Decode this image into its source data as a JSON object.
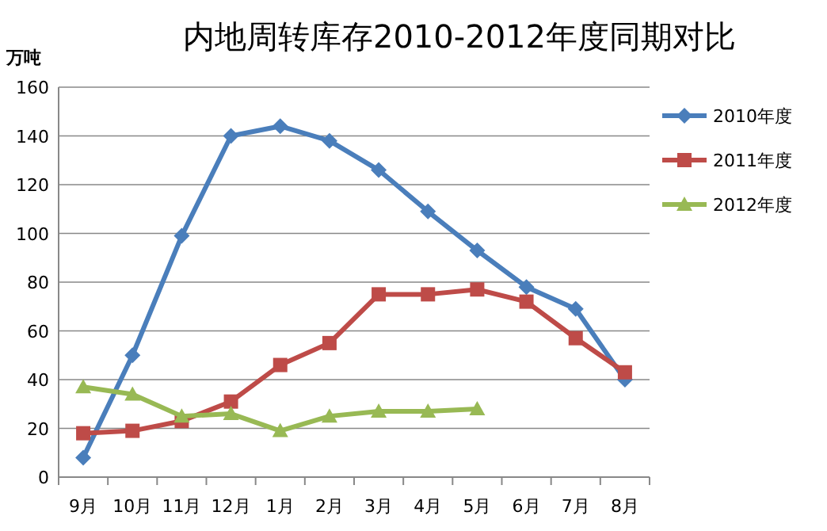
{
  "chart_data": {
    "type": "line",
    "title": "内地周转库存2010-2012年度同期对比",
    "ylabel": "万吨",
    "categories": [
      "9月",
      "10月",
      "11月",
      "12月",
      "1月",
      "2月",
      "3月",
      "4月",
      "5月",
      "6月",
      "7月",
      "8月"
    ],
    "ylim": [
      0,
      160
    ],
    "yticks": [
      0,
      20,
      40,
      60,
      80,
      100,
      120,
      140,
      160
    ],
    "grid": "y",
    "legend": "right",
    "series": [
      {
        "name": "2010年度",
        "color": "#4a7ebb",
        "marker": "diamond",
        "values": [
          8,
          50,
          99,
          140,
          144,
          138,
          126,
          109,
          93,
          78,
          69,
          40
        ]
      },
      {
        "name": "2011年度",
        "color": "#be4b48",
        "marker": "square",
        "values": [
          18,
          19,
          23,
          31,
          46,
          55,
          75,
          75,
          77,
          72,
          57,
          43
        ]
      },
      {
        "name": "2012年度",
        "color": "#98b954",
        "marker": "triangle",
        "values": [
          37,
          34,
          25,
          26,
          19,
          25,
          27,
          27,
          28,
          null,
          null,
          null
        ]
      }
    ]
  }
}
